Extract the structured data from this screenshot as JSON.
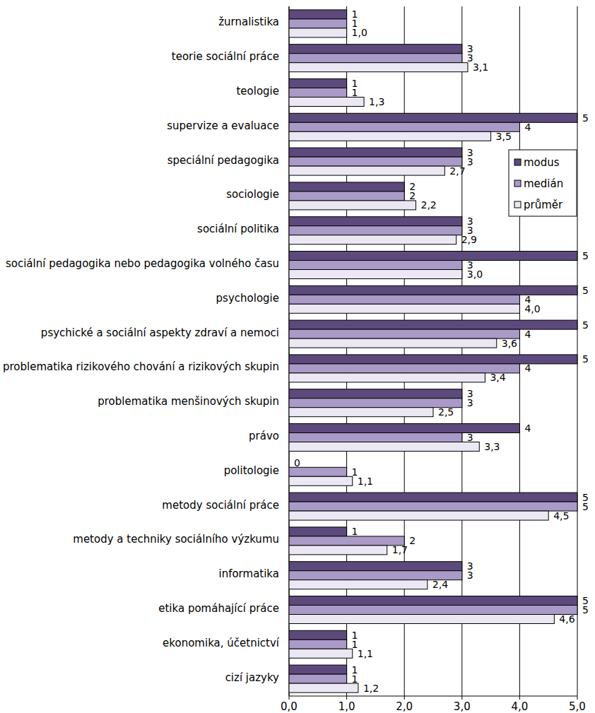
{
  "chart_data": {
    "type": "bar",
    "orientation": "horizontal",
    "categories": [
      "žurnalistika",
      "teorie sociální práce",
      "teologie",
      "supervize a evaluace",
      "speciální pedagogika",
      "sociologie",
      "sociální politika",
      "sociální pedagogika nebo pedagogika volného času",
      "psychologie",
      "psychické a sociální aspekty zdraví a nemoci",
      "problematika rizikového chování a rizikových skupin",
      "problematika menšinových skupin",
      "právo",
      "politologie",
      "metody sociální práce",
      "metody a techniky sociálního výzkumu",
      "informatika",
      "etika pomáhající práce",
      "ekonomika, účetnictví",
      "cizí jazyky"
    ],
    "series": [
      {
        "name": "modus",
        "color": "#5c4a7c",
        "values": [
          1,
          3,
          1,
          5,
          3,
          2,
          3,
          5,
          5,
          5,
          5,
          3,
          4,
          0,
          5,
          1,
          3,
          5,
          1,
          1
        ]
      },
      {
        "name": "medián",
        "color": "#a99ac8",
        "values": [
          1,
          3,
          1,
          4,
          3,
          2,
          3,
          3,
          4,
          4,
          4,
          3,
          3,
          1,
          5,
          2,
          3,
          5,
          1,
          1
        ]
      },
      {
        "name": "průměr",
        "color": "#ebe7f3",
        "values": [
          1.0,
          3.1,
          1.3,
          3.5,
          2.7,
          2.2,
          2.9,
          3.0,
          4.0,
          3.6,
          3.4,
          2.5,
          3.3,
          1.1,
          4.5,
          1.7,
          2.4,
          4.6,
          1.1,
          1.2
        ],
        "value_labels": [
          "1,0",
          "3,1",
          "1,3",
          "3,5",
          "2,7",
          "2,2",
          "2,9",
          "3,0",
          "4,0",
          "3,6",
          "3,4",
          "2,5",
          "3,3",
          "1,1",
          "4,5",
          "1,7",
          "2,4",
          "4,6",
          "1,1",
          "1,2"
        ]
      }
    ],
    "xlim": [
      0,
      5
    ],
    "xticks": [
      {
        "value": 0,
        "label": "0,0"
      },
      {
        "value": 1,
        "label": "1,0"
      },
      {
        "value": 2,
        "label": "2,0"
      },
      {
        "value": 3,
        "label": "3,0"
      },
      {
        "value": 4,
        "label": "4,0"
      },
      {
        "value": 5,
        "label": "5,0"
      }
    ],
    "grid": true,
    "legend": "right",
    "data_labels": true
  }
}
